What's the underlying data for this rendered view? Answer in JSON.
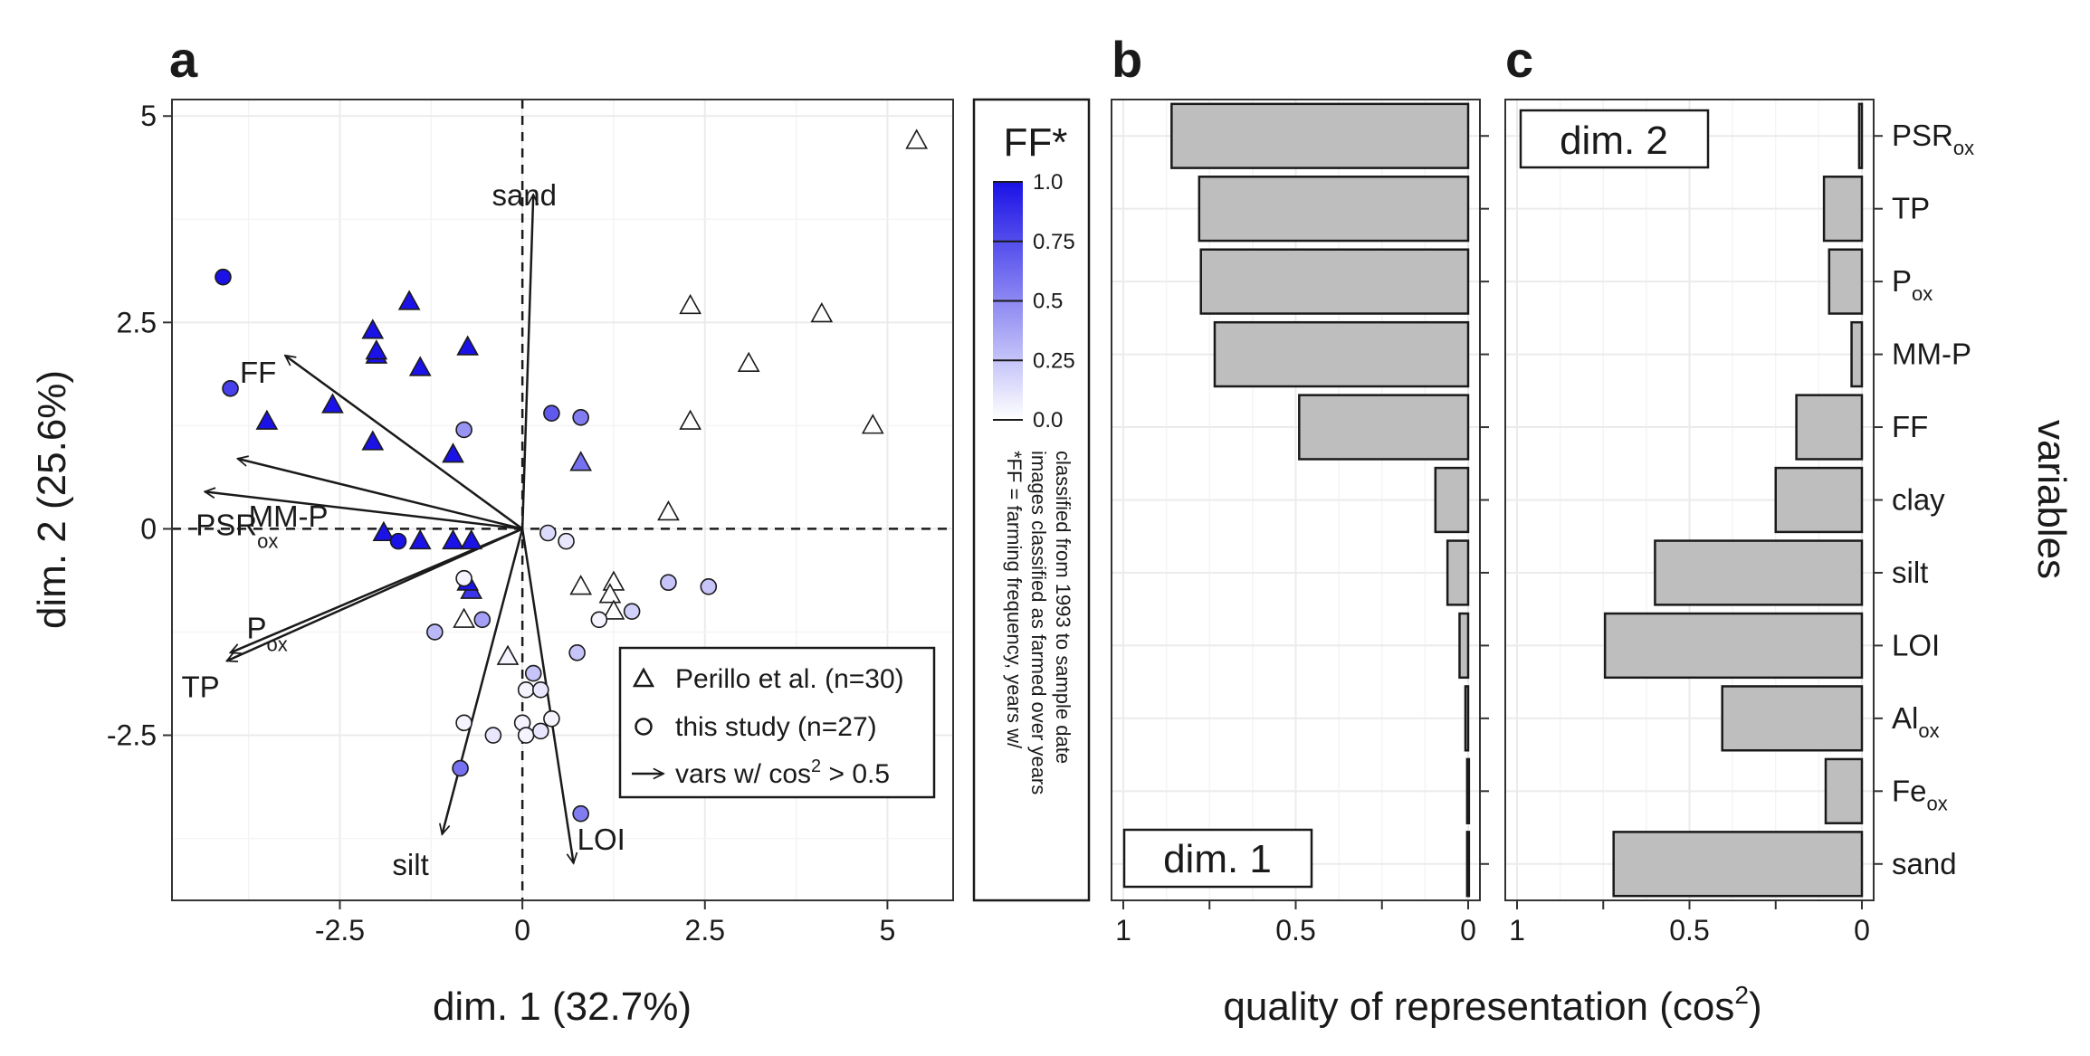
{
  "chart_data": [
    {
      "type": "scatter",
      "panel": "a",
      "xlabel": "dim. 1 (32.7%)",
      "ylabel": "dim. 2 (25.6%)",
      "xlim": [
        -4.8,
        5.9
      ],
      "ylim": [
        -4.5,
        5.2
      ],
      "xticks": [
        -2.5,
        0,
        2.5,
        5
      ],
      "xtick_labels": [
        "-2.5",
        "0",
        "2.5",
        "5"
      ],
      "yticks": [
        -2.5,
        0,
        2.5,
        5
      ],
      "ytick_labels": [
        "-2.5",
        "0",
        "2.5",
        "5"
      ],
      "grid": true,
      "reference_lines": {
        "x": 0,
        "y": 0,
        "style": "dashed"
      },
      "series": [
        {
          "name": "Perillo et al. (n=30)",
          "marker": "triangle",
          "points": [
            [
              5.4,
              4.7,
              0.0
            ],
            [
              4.1,
              2.6,
              0.0
            ],
            [
              3.1,
              2.0,
              0.0
            ],
            [
              4.8,
              1.25,
              0.0
            ],
            [
              2.3,
              1.3,
              0.0
            ],
            [
              2.3,
              2.7,
              0.0
            ],
            [
              2.0,
              0.2,
              0.0
            ],
            [
              1.25,
              -0.65,
              0.0
            ],
            [
              1.2,
              -0.8,
              0.0
            ],
            [
              0.8,
              -0.7,
              0.0
            ],
            [
              1.25,
              -1.0,
              0.0
            ],
            [
              -0.8,
              -1.1,
              0.0
            ],
            [
              -0.2,
              -1.55,
              0.05
            ],
            [
              -1.55,
              2.75,
              1.0
            ],
            [
              -2.05,
              2.4,
              1.0
            ],
            [
              -2.0,
              2.1,
              1.0
            ],
            [
              -2.0,
              2.15,
              1.0
            ],
            [
              -1.4,
              1.95,
              1.0
            ],
            [
              -0.75,
              2.2,
              1.0
            ],
            [
              -2.6,
              1.5,
              1.0
            ],
            [
              -3.5,
              1.3,
              1.0
            ],
            [
              -2.05,
              1.05,
              1.0
            ],
            [
              -0.95,
              0.9,
              1.0
            ],
            [
              0.8,
              0.8,
              0.6
            ],
            [
              -1.9,
              -0.05,
              1.0
            ],
            [
              -1.4,
              -0.15,
              1.0
            ],
            [
              -0.95,
              -0.15,
              1.0
            ],
            [
              -0.7,
              -0.15,
              1.0
            ],
            [
              -0.7,
              -0.75,
              0.85
            ],
            [
              -0.75,
              -0.65,
              1.0
            ]
          ]
        },
        {
          "name": "this study (n=27)",
          "marker": "circle",
          "points": [
            [
              -4.1,
              3.05,
              1.0
            ],
            [
              -4.0,
              1.7,
              0.8
            ],
            [
              -1.7,
              -0.15,
              1.0
            ],
            [
              0.4,
              1.4,
              0.7
            ],
            [
              0.8,
              1.35,
              0.55
            ],
            [
              -0.8,
              1.2,
              0.45
            ],
            [
              0.35,
              -0.05,
              0.15
            ],
            [
              0.6,
              -0.15,
              0.1
            ],
            [
              2.0,
              -0.65,
              0.25
            ],
            [
              2.55,
              -0.7,
              0.25
            ],
            [
              1.5,
              -1.0,
              0.2
            ],
            [
              1.05,
              -1.1,
              0.05
            ],
            [
              -0.8,
              -0.6,
              0.05
            ],
            [
              -0.55,
              -1.1,
              0.4
            ],
            [
              -1.2,
              -1.25,
              0.3
            ],
            [
              0.75,
              -1.5,
              0.25
            ],
            [
              0.15,
              -1.75,
              0.25
            ],
            [
              0.05,
              -1.95,
              0.05
            ],
            [
              0.25,
              -1.95,
              0.1
            ],
            [
              0.4,
              -2.3,
              0.05
            ],
            [
              0.0,
              -2.35,
              0.05
            ],
            [
              0.05,
              -2.5,
              0.05
            ],
            [
              0.25,
              -2.45,
              0.1
            ],
            [
              -0.8,
              -2.35,
              0.05
            ],
            [
              -0.4,
              -2.5,
              0.1
            ],
            [
              -0.85,
              -2.9,
              0.6
            ],
            [
              0.8,
              -3.45,
              0.55
            ]
          ]
        }
      ],
      "loadings": [
        {
          "label": "sand",
          "x": 0.15,
          "y": 4.05
        },
        {
          "label": "FF",
          "x": -3.25,
          "y": 2.1
        },
        {
          "label": "MM-P",
          "x": -3.9,
          "y": 0.85
        },
        {
          "label": "PSR",
          "sub": "ox",
          "x": -4.35,
          "y": 0.45
        },
        {
          "label": "P",
          "sub": "ox",
          "x": -4.0,
          "y": -1.5
        },
        {
          "label": "TP",
          "x": -4.05,
          "y": -1.6
        },
        {
          "label": "silt",
          "x": -1.1,
          "y": -3.7
        },
        {
          "label": "LOI",
          "x": 0.7,
          "y": -4.05
        }
      ],
      "legend": [
        {
          "marker": "triangle",
          "label": "Perillo et al. (n=30)"
        },
        {
          "marker": "circle",
          "label": "this study (n=27)"
        },
        {
          "marker": "arrow",
          "label": "vars w/ cos",
          "sup": "2",
          "suffix": " > 0.5"
        }
      ],
      "legend_placement": "bottom-right"
    },
    {
      "type": "bar",
      "panel": "b",
      "box_label": "dim. 1",
      "orientation": "horizontal",
      "reversed_x": true,
      "xlim": [
        1.0,
        0.0
      ],
      "xticks": [
        1,
        0.5,
        0
      ],
      "xtick_labels": [
        "1",
        "0.5",
        "0"
      ],
      "categories": [
        "PSR_ox",
        "TP",
        "P_ox",
        "MM-P",
        "FF",
        "clay",
        "silt",
        "LOI",
        "Al_ox",
        "Fe_ox",
        "sand"
      ],
      "values": [
        0.86,
        0.78,
        0.775,
        0.735,
        0.49,
        0.095,
        0.06,
        0.025,
        0.008,
        0.003,
        0.003
      ]
    },
    {
      "type": "bar",
      "panel": "c",
      "box_label": "dim. 2",
      "orientation": "horizontal",
      "reversed_x": true,
      "xlim": [
        1.0,
        0.0
      ],
      "xticks": [
        1,
        0.5,
        0
      ],
      "xtick_labels": [
        "1",
        "0.5",
        "0"
      ],
      "categories": [
        "PSR_ox",
        "TP",
        "P_ox",
        "MM-P",
        "FF",
        "clay",
        "silt",
        "LOI",
        "Al_ox",
        "Fe_ox",
        "sand"
      ],
      "category_labels": [
        {
          "base": "PSR",
          "sub": "ox"
        },
        {
          "base": "TP"
        },
        {
          "base": "P",
          "sub": "ox"
        },
        {
          "base": "MM-P"
        },
        {
          "base": "FF"
        },
        {
          "base": "clay"
        },
        {
          "base": "silt"
        },
        {
          "base": "LOI"
        },
        {
          "base": "Al",
          "sub": "ox"
        },
        {
          "base": "Fe",
          "sub": "ox"
        },
        {
          "base": "sand"
        }
      ],
      "values": [
        0.008,
        0.11,
        0.095,
        0.03,
        0.19,
        0.25,
        0.6,
        0.745,
        0.405,
        0.105,
        0.72
      ],
      "ylabel": "variables"
    }
  ],
  "panel_labels": {
    "a": "a",
    "b": "b",
    "c": "c"
  },
  "shared_xlabel": {
    "text": "quality of representation (cos",
    "sup": "2",
    "suffix": ")"
  },
  "colorbar": {
    "title": "FF*",
    "range": [
      0,
      1
    ],
    "ticks": [
      1.0,
      0.75,
      0.5,
      0.25,
      0.0
    ],
    "tick_labels": [
      "1.0",
      "0.75",
      "0.5",
      "0.25",
      "0.0"
    ],
    "color_low": "#ffffff",
    "color_high": "#1a12e6",
    "note_lines": [
      "*FF = farming frequency, years w/",
      "images classified as farmed over years",
      "classified from 1993 to sample date"
    ]
  },
  "colors": {
    "bar_fill": "#bebebe",
    "bar_stroke": "#1a1a1a",
    "grid": "#ebebeb"
  }
}
